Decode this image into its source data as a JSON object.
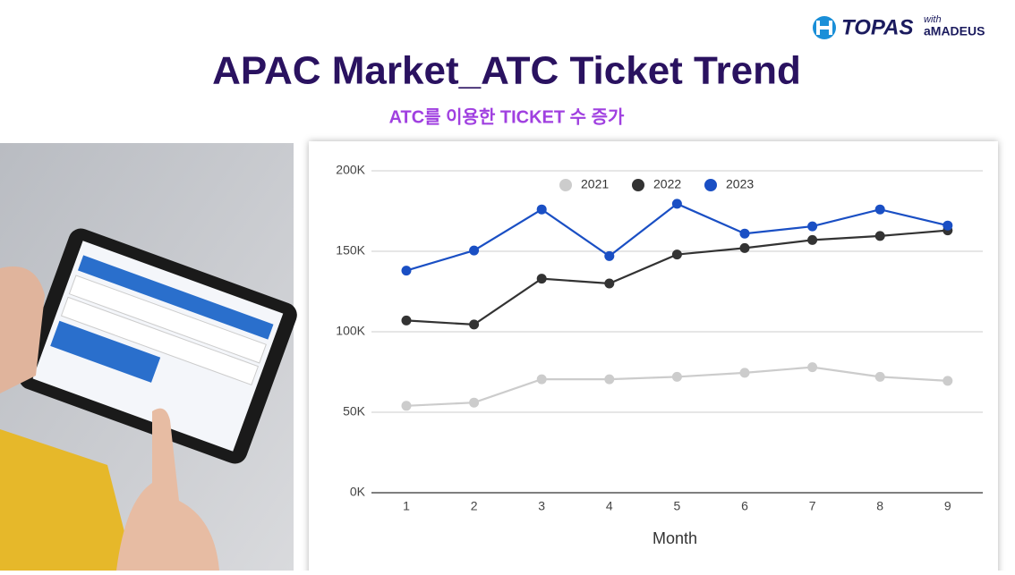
{
  "logo": {
    "brand": "TOPAS",
    "with": "with",
    "partner": "aMADEUS"
  },
  "header": {
    "title": "APAC Market_ATC Ticket Trend",
    "subtitle": "ATC를 이용한 TICKET 수 증가"
  },
  "chart_data": {
    "type": "line",
    "categories": [
      "1",
      "2",
      "3",
      "4",
      "5",
      "6",
      "7",
      "8",
      "9"
    ],
    "x_label": "Month",
    "series": [
      {
        "name": "2021",
        "color": "#cccccc",
        "values": [
          54000,
          56000,
          70500,
          70500,
          72000,
          74500,
          78000,
          72000,
          69500
        ]
      },
      {
        "name": "2022",
        "color": "#333333",
        "values": [
          107000,
          104500,
          133000,
          130000,
          148000,
          152000,
          157000,
          159500,
          163000
        ]
      },
      {
        "name": "2023",
        "color": "#1a4fc4",
        "values": [
          138000,
          150500,
          176000,
          147000,
          179500,
          161000,
          165500,
          176000,
          166000
        ]
      }
    ],
    "ylim": [
      0,
      200000
    ],
    "yticks": [
      {
        "value": 0,
        "label": "0K"
      },
      {
        "value": 50000,
        "label": "50K"
      },
      {
        "value": 100000,
        "label": "100K"
      },
      {
        "value": 150000,
        "label": "150K"
      },
      {
        "value": 200000,
        "label": "200K"
      }
    ],
    "grid": true,
    "legend": "top"
  }
}
